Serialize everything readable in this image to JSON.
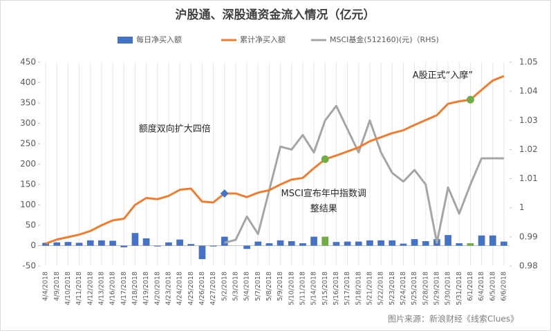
{
  "chart_data": {
    "type": "combo",
    "title": "沪股通、深股通资金流入情况（亿元）",
    "categories": [
      "4/4/2018",
      "4/9/2018",
      "4/10/2018",
      "4/11/2018",
      "4/12/2018",
      "4/13/2018",
      "4/16/2018",
      "4/17/2018",
      "4/18/2018",
      "4/19/2018",
      "4/20/2018",
      "4/23/2018",
      "4/24/2018",
      "4/25/2018",
      "4/26/2018",
      "4/27/2018",
      "5/2/2018",
      "5/3/2018",
      "5/4/2018",
      "5/7/2018",
      "5/8/2018",
      "5/9/2018",
      "5/10/2018",
      "5/11/2018",
      "5/14/2018",
      "5/15/2018",
      "5/16/2018",
      "5/17/2018",
      "5/18/2018",
      "5/21/2018",
      "5/22/2018",
      "5/23/2018",
      "5/24/2018",
      "5/25/2018",
      "5/28/2018",
      "5/29/2018",
      "5/30/2018",
      "5/31/2018",
      "6/1/2018",
      "6/4/2018",
      "6/5/2018",
      "6/6/2018"
    ],
    "series": [
      {
        "name": "每日净买入额",
        "type": "bar",
        "color": "#4472c4",
        "colors": [
          "#4472c4",
          "#4472c4",
          "#4472c4",
          "#4472c4",
          "#4472c4",
          "#4472c4",
          "#4472c4",
          "#4472c4",
          "#4472c4",
          "#4472c4",
          "#4472c4",
          "#4472c4",
          "#4472c4",
          "#4472c4",
          "#4472c4",
          "#4472c4",
          "#4472c4",
          "#4472c4",
          "#4472c4",
          "#4472c4",
          "#4472c4",
          "#4472c4",
          "#4472c4",
          "#4472c4",
          "#4472c4",
          "#70ad47",
          "#4472c4",
          "#4472c4",
          "#4472c4",
          "#4472c4",
          "#4472c4",
          "#4472c4",
          "#4472c4",
          "#4472c4",
          "#4472c4",
          "#4472c4",
          "#4472c4",
          "#4472c4",
          "#70ad47",
          "#4472c4",
          "#4472c4",
          "#4472c4"
        ],
        "values": [
          7,
          8,
          9,
          7,
          13,
          13,
          12,
          -4,
          31,
          18,
          -2,
          8,
          15,
          4,
          -33,
          -2,
          22,
          0,
          -8,
          10,
          6,
          13,
          11,
          6,
          22,
          22,
          9,
          10,
          10,
          13,
          13,
          13,
          5,
          16,
          11,
          16,
          26,
          6,
          6,
          25,
          25,
          10
        ]
      },
      {
        "name": "累计净买入额",
        "type": "line",
        "color": "#ed7d31",
        "values": [
          5,
          15,
          21,
          27,
          36,
          50,
          62,
          66,
          100,
          117,
          114,
          122,
          137,
          140,
          108,
          106,
          128,
          128,
          119,
          130,
          136,
          150,
          162,
          166,
          190,
          212,
          221,
          231,
          241,
          256,
          266,
          276,
          283,
          296,
          308,
          320,
          348,
          354,
          358,
          382,
          405,
          416
        ]
      },
      {
        "name": "MSCI基金(512160)(元)（RHS)",
        "type": "line",
        "axis": "y2",
        "color": "#a5a5a5",
        "values": [
          null,
          null,
          null,
          null,
          null,
          null,
          null,
          null,
          null,
          null,
          null,
          null,
          null,
          null,
          null,
          null,
          0.988,
          0.989,
          0.997,
          0.991,
          1.006,
          1.021,
          1.02,
          1.025,
          1.019,
          1.03,
          1.035,
          1.027,
          1.019,
          1.03,
          1.019,
          1.012,
          1.009,
          1.013,
          1.008,
          0.988,
          1.007,
          0.998,
          1.008,
          1.017,
          1.017,
          1.017
        ]
      }
    ],
    "ylim": [
      -50,
      450
    ],
    "yticks": [
      -50,
      0,
      50,
      100,
      150,
      200,
      250,
      300,
      350,
      400,
      450
    ],
    "y2lim": [
      0.98,
      1.05
    ],
    "y2ticks": [
      0.98,
      0.99,
      1,
      1.01,
      1.02,
      1.03,
      1.04,
      1.05
    ],
    "grid": "x",
    "legend": "top",
    "annotations": [
      {
        "text": "额度双向扩大四倍",
        "category": "5/2/2018",
        "marker": "diamond",
        "color": "#4472c4"
      },
      {
        "text": "MSCI宣布年中指数调",
        "text2": "整结果",
        "category": "5/15/2018",
        "marker": "circle",
        "color": "#70ad47"
      },
      {
        "text": "A股正式“入摩”",
        "category": "6/1/2018",
        "marker": "circle",
        "color": "#70ad47"
      }
    ],
    "source": "图片来源：新浪财经《线索Clues》"
  }
}
